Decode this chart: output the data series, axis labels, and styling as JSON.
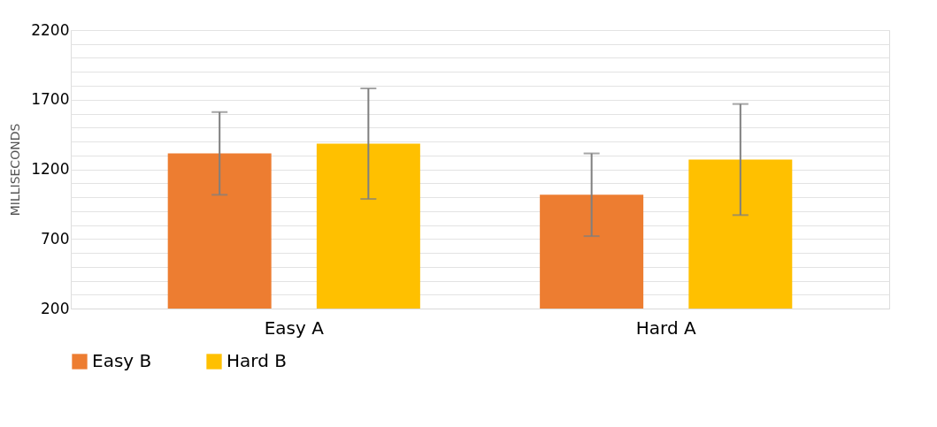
{
  "chart_data": {
    "type": "bar",
    "ylabel": "MILLISECONDS",
    "categories": [
      "Easy A",
      "Hard A"
    ],
    "series": [
      {
        "name": "Easy B",
        "color": "#ed7d31",
        "values": [
          1314,
          1017
        ],
        "errors": [
          297,
          297
        ]
      },
      {
        "name": "Hard B",
        "color": "#ffc000",
        "values": [
          1384,
          1270
        ],
        "errors": [
          397,
          399
        ]
      }
    ],
    "ylim": [
      200,
      2200
    ],
    "yticks": [
      200,
      {
        "value": 300,
        "label": null
      },
      {
        "value": 400,
        "label": null
      },
      {
        "value": 500,
        "label": null
      },
      {
        "value": 600,
        "label": null
      },
      700,
      {
        "value": 800,
        "label": null
      },
      {
        "value": 900,
        "label": null
      },
      {
        "value": 1000,
        "label": null
      },
      {
        "value": 1100,
        "label": null
      },
      1200,
      {
        "value": 1300,
        "label": null
      },
      {
        "value": 1400,
        "label": null
      },
      {
        "value": 1500,
        "label": null
      },
      {
        "value": 1600,
        "label": null
      },
      1700,
      {
        "value": 1800,
        "label": null
      },
      {
        "value": 1900,
        "label": null
      },
      {
        "value": 2000,
        "label": null
      },
      {
        "value": 2100,
        "label": null
      },
      2200
    ],
    "grid": true,
    "legend": "bottom"
  }
}
